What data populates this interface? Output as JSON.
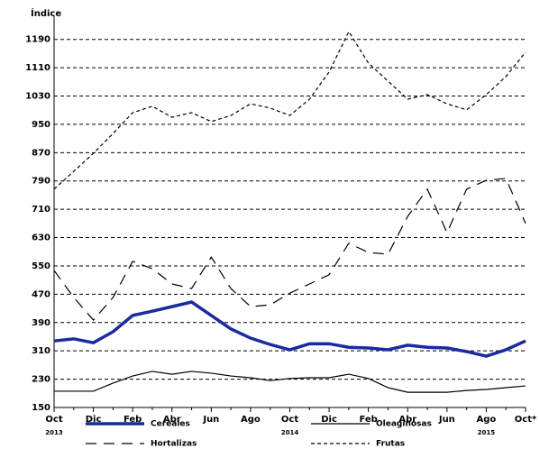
{
  "chart_data": {
    "type": "line",
    "y_label": "Índice",
    "categories": [
      "Oct",
      null,
      "Dic",
      null,
      "Feb",
      null,
      "Abr",
      null,
      "Jun",
      null,
      "Ago",
      null,
      "Oct",
      null,
      "Dic",
      null,
      "Feb",
      null,
      "Abr",
      null,
      "Jun",
      null,
      "Ago",
      null,
      "Oct*"
    ],
    "annotations": [
      "2013",
      "2014",
      "2015"
    ],
    "ylim": [
      150,
      1230
    ],
    "yticks": [
      150,
      230,
      310,
      390,
      470,
      550,
      630,
      710,
      790,
      870,
      950,
      1030,
      1110,
      1190
    ],
    "grid": true,
    "series": [
      {
        "name": "Cereales",
        "color": "#1a2aa0",
        "style": "thick",
        "values": [
          338,
          344,
          333,
          364,
          410,
          422,
          435,
          448,
          410,
          372,
          346,
          328,
          313,
          330,
          330,
          320,
          318,
          313,
          326,
          320,
          318,
          308,
          295,
          313,
          338
        ]
      },
      {
        "name": "Oleaginosas",
        "color": "#000000",
        "style": "solid",
        "values": [
          196,
          196,
          196,
          219,
          239,
          252,
          244,
          252,
          247,
          239,
          234,
          226,
          232,
          234,
          234,
          244,
          232,
          206,
          193,
          193,
          193,
          198,
          201,
          206,
          211
        ]
      },
      {
        "name": "Hortalizas",
        "color": "#000000",
        "style": "long-dash",
        "values": [
          537,
          461,
          397,
          461,
          563,
          542,
          499,
          486,
          575,
          486,
          435,
          440,
          473,
          499,
          525,
          614,
          588,
          583,
          690,
          767,
          644,
          767,
          792,
          797,
          670
        ]
      },
      {
        "name": "Frutas",
        "color": "#000000",
        "style": "short-dash",
        "values": [
          767,
          817,
          868,
          924,
          983,
          1001,
          970,
          983,
          958,
          975,
          1008,
          996,
          975,
          1021,
          1098,
          1212,
          1123,
          1072,
          1021,
          1034,
          1008,
          991,
          1034,
          1085,
          1154
        ]
      }
    ]
  }
}
